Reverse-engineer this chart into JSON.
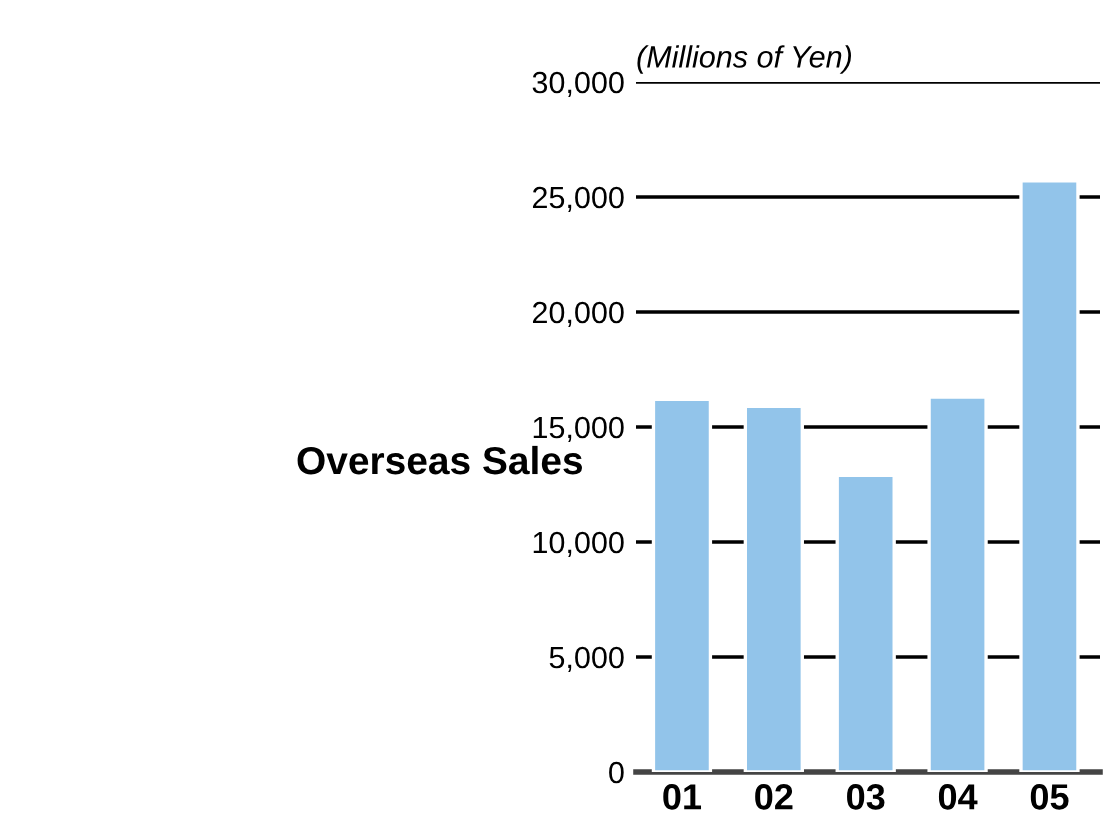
{
  "chart_data": {
    "type": "bar",
    "title": "Overseas Sales",
    "ylabel": "(Millions of Yen)",
    "categories": [
      "01",
      "02",
      "03",
      "04",
      "05"
    ],
    "values": [
      16200,
      15900,
      12900,
      16300,
      25700
    ],
    "color": "#92c4ea",
    "ylim": [
      0,
      30000
    ],
    "yticks": [
      {
        "value": 0,
        "label": "0"
      },
      {
        "value": 5000,
        "label": "5,000"
      },
      {
        "value": 10000,
        "label": "10,000"
      },
      {
        "value": 15000,
        "label": "15,000"
      },
      {
        "value": 20000,
        "label": "20,000"
      },
      {
        "value": 25000,
        "label": "25,000"
      },
      {
        "value": 30000,
        "label": "30,000"
      }
    ],
    "grid": "y"
  }
}
